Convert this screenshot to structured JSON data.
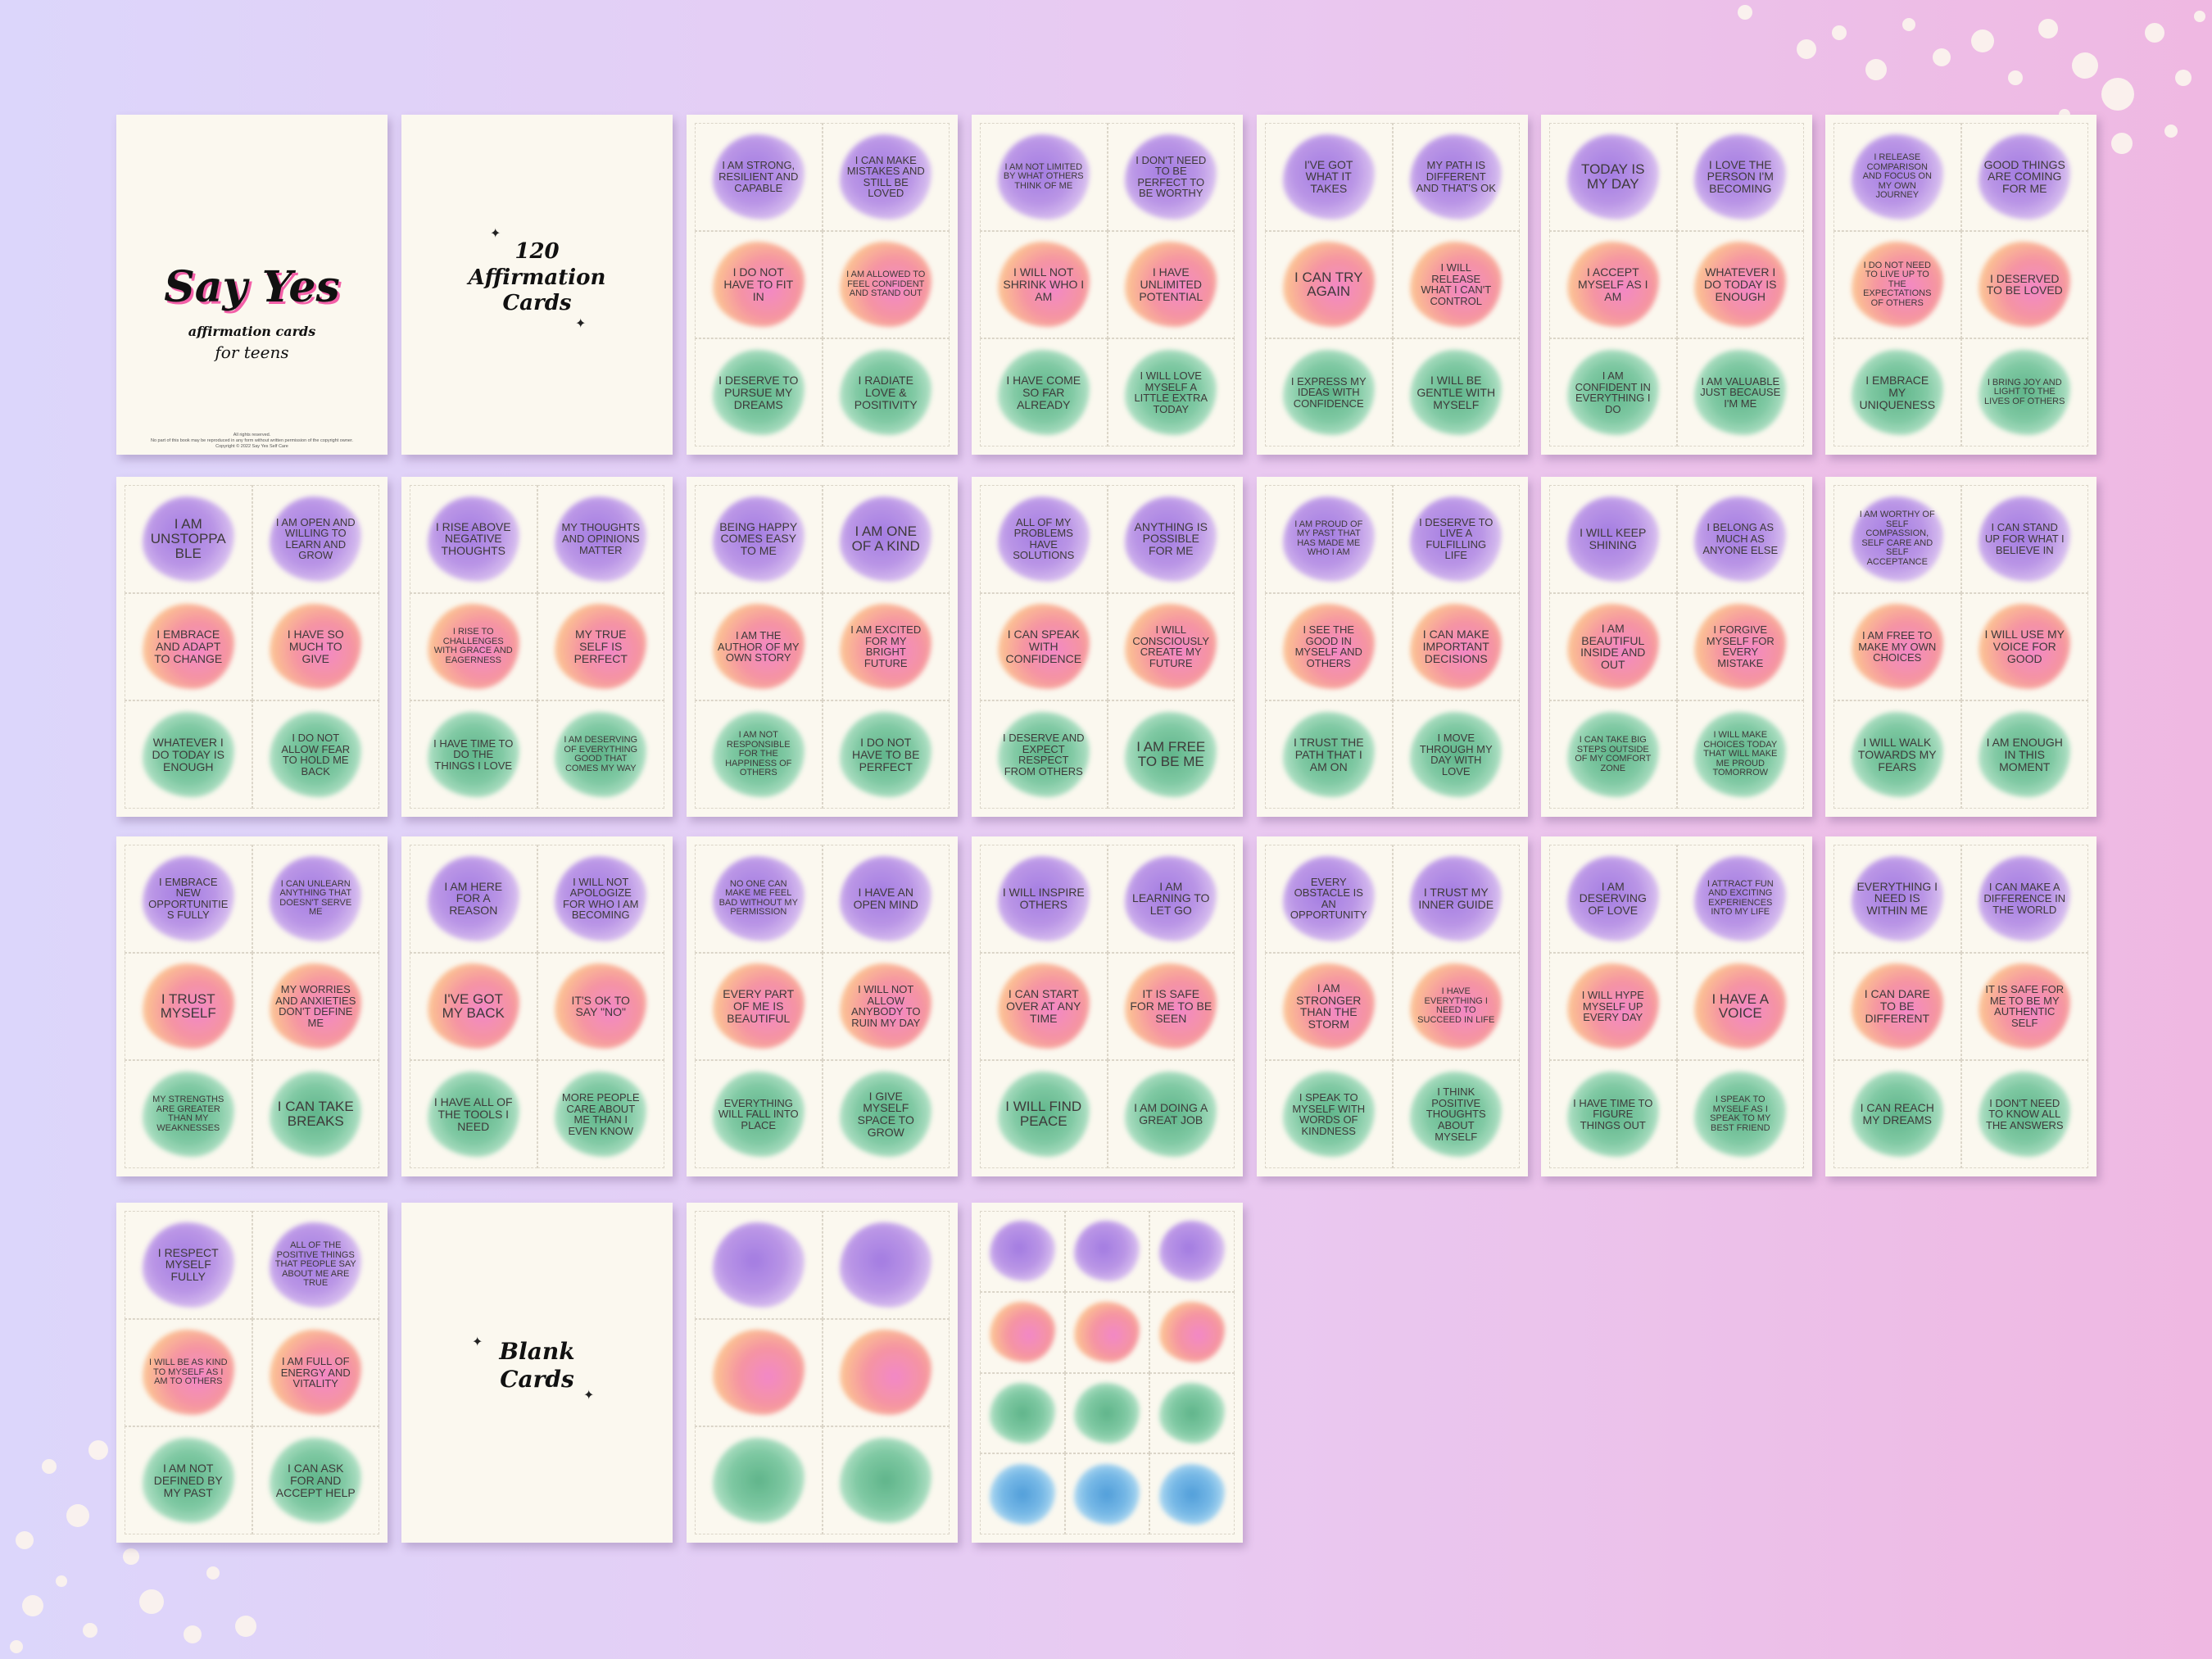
{
  "cover": {
    "title": "Say Yes",
    "subtitle": "affirmation cards",
    "tagline": "for teens",
    "legal_line1": "All rights reserved.",
    "legal_line2": "No part of this book may be reproduced in any form without written permission of the copyright owner.",
    "legal_line3": "Copyright © 2022 Say Yes Self Care"
  },
  "intro_page": {
    "line1": "120",
    "line2": "Affirmation",
    "line3": "Cards"
  },
  "blank_page": {
    "line1": "Blank",
    "line2": "Cards"
  },
  "sheets": [
    [
      "I AM STRONG, RESILIENT AND CAPABLE",
      "I CAN MAKE MISTAKES AND STILL BE LOVED",
      "I DO NOT HAVE TO FIT IN",
      "I AM ALLOWED TO FEEL CONFIDENT AND STAND OUT",
      "I DESERVE TO PURSUE MY DREAMS",
      "I RADIATE LOVE & POSITIVITY"
    ],
    [
      "I AM NOT LIMITED BY WHAT OTHERS THINK OF ME",
      "I DON'T NEED TO BE PERFECT TO BE WORTHY",
      "I WILL NOT SHRINK WHO I AM",
      "I HAVE UNLIMITED POTENTIAL",
      "I HAVE COME SO FAR ALREADY",
      "I WILL LOVE MYSELF A LITTLE EXTRA TODAY"
    ],
    [
      "I'VE GOT WHAT IT TAKES",
      "MY PATH IS DIFFERENT AND THAT'S OK",
      "I CAN TRY AGAIN",
      "I WILL RELEASE WHAT I CAN'T CONTROL",
      "I EXPRESS MY IDEAS WITH CONFIDENCE",
      "I WILL BE GENTLE WITH MYSELF"
    ],
    [
      "TODAY IS MY DAY",
      "I LOVE THE PERSON I'M BECOMING",
      "I ACCEPT MYSELF AS I AM",
      "WHATEVER I DO TODAY IS ENOUGH",
      "I AM CONFIDENT IN EVERYTHING I DO",
      "I AM VALUABLE JUST BECAUSE I'M ME"
    ],
    [
      "I RELEASE COMPARISON AND FOCUS ON MY OWN JOURNEY",
      "GOOD THINGS ARE COMING FOR ME",
      "I DO NOT NEED TO LIVE UP TO THE EXPECTATIONS OF OTHERS",
      "I DESERVED TO BE LOVED",
      "I EMBRACE MY UNIQUENESS",
      "I BRING JOY AND LIGHT TO THE LIVES OF OTHERS"
    ],
    [
      "I AM UNSTOPPABLE",
      "I AM OPEN AND WILLING TO LEARN AND GROW",
      "I EMBRACE AND ADAPT TO CHANGE",
      "I HAVE SO MUCH TO GIVE",
      "WHATEVER I DO TODAY IS ENOUGH",
      "I DO NOT ALLOW FEAR TO HOLD ME BACK"
    ],
    [
      "I RISE ABOVE NEGATIVE THOUGHTS",
      "MY THOUGHTS AND OPINIONS MATTER",
      "I RISE TO CHALLENGES WITH GRACE AND EAGERNESS",
      "MY TRUE SELF IS PERFECT",
      "I HAVE TIME TO DO THE THINGS I LOVE",
      "I AM DESERVING OF EVERYTHING GOOD THAT COMES MY WAY"
    ],
    [
      "BEING HAPPY COMES EASY TO ME",
      "I AM ONE OF A KIND",
      "I AM THE AUTHOR OF MY OWN STORY",
      "I AM EXCITED FOR MY BRIGHT FUTURE",
      "I AM NOT RESPONSIBLE FOR THE HAPPINESS OF OTHERS",
      "I DO NOT HAVE TO BE PERFECT"
    ],
    [
      "ALL OF MY PROBLEMS HAVE SOLUTIONS",
      "ANYTHING IS POSSIBLE FOR ME",
      "I CAN SPEAK WITH CONFIDENCE",
      "I WILL CONSCIOUSLY CREATE MY FUTURE",
      "I DESERVE AND EXPECT RESPECT FROM OTHERS",
      "I AM FREE TO BE ME"
    ],
    [
      "I AM PROUD OF MY PAST THAT HAS MADE ME WHO I AM",
      "I DESERVE TO LIVE A FULFILLING LIFE",
      "I SEE THE GOOD IN MYSELF AND OTHERS",
      "I CAN MAKE IMPORTANT DECISIONS",
      "I TRUST THE PATH THAT I AM ON",
      "I MOVE THROUGH MY DAY WITH LOVE"
    ],
    [
      "I WILL KEEP SHINING",
      "I BELONG AS MUCH AS ANYONE ELSE",
      "I AM BEAUTIFUL INSIDE AND OUT",
      "I FORGIVE MYSELF FOR EVERY MISTAKE",
      "I CAN TAKE BIG STEPS OUTSIDE OF MY COMFORT ZONE",
      "I WILL MAKE CHOICES TODAY THAT WILL MAKE ME PROUD TOMORROW"
    ],
    [
      "I AM WORTHY OF SELF COMPASSION, SELF CARE AND SELF ACCEPTANCE",
      "I CAN STAND UP FOR WHAT I BELIEVE IN",
      "I AM FREE TO MAKE MY OWN CHOICES",
      "I WILL USE MY VOICE FOR GOOD",
      "I WILL WALK TOWARDS MY FEARS",
      "I AM ENOUGH IN THIS MOMENT"
    ],
    [
      "I EMBRACE NEW OPPORTUNITIES FULLY",
      "I CAN UNLEARN ANYTHING THAT DOESN'T SERVE ME",
      "I TRUST MYSELF",
      "MY WORRIES AND ANXIETIES DON'T DEFINE ME",
      "MY STRENGTHS ARE GREATER THAN MY WEAKNESSES",
      "I CAN TAKE BREAKS"
    ],
    [
      "I AM HERE FOR A REASON",
      "I WILL NOT APOLOGIZE FOR WHO I AM BECOMING",
      "I'VE GOT MY BACK",
      "IT'S OK TO SAY \"NO\"",
      "I HAVE ALL OF THE TOOLS I NEED",
      "MORE PEOPLE CARE ABOUT ME THAN I EVEN KNOW"
    ],
    [
      "NO ONE CAN MAKE ME FEEL BAD WITHOUT MY PERMISSION",
      "I HAVE AN OPEN MIND",
      "EVERY PART OF ME IS BEAUTIFUL",
      "I WILL NOT ALLOW ANYBODY TO RUIN MY DAY",
      "EVERYTHING WILL FALL INTO PLACE",
      "I GIVE MYSELF SPACE TO GROW"
    ],
    [
      "I WILL INSPIRE OTHERS",
      "I AM LEARNING TO LET GO",
      "I CAN START OVER AT ANY TIME",
      "IT IS SAFE FOR ME TO BE SEEN",
      "I WILL FIND PEACE",
      "I AM DOING A GREAT JOB"
    ],
    [
      "EVERY OBSTACLE IS AN OPPORTUNITY",
      "I TRUST MY INNER GUIDE",
      "I AM STRONGER THAN THE STORM",
      "I HAVE EVERYTHING I NEED TO SUCCEED IN LIFE",
      "I SPEAK TO MYSELF WITH WORDS OF KINDNESS",
      "I THINK POSITIVE THOUGHTS ABOUT MYSELF"
    ],
    [
      "I AM DESERVING OF LOVE",
      "I ATTRACT FUN AND EXCITING EXPERIENCES INTO MY LIFE",
      "I WILL HYPE MYSELF UP EVERY DAY",
      "I HAVE A VOICE",
      "I HAVE TIME TO FIGURE THINGS OUT",
      "I SPEAK TO MYSELF AS I SPEAK TO MY BEST FRIEND"
    ],
    [
      "EVERYTHING I NEED IS WITHIN ME",
      "I CAN MAKE A DIFFERENCE IN THE WORLD",
      "I CAN DARE TO BE DIFFERENT",
      "IT IS SAFE FOR ME TO BE MY AUTHENTIC SELF",
      "I CAN REACH MY DREAMS",
      "I DON'T NEED TO KNOW ALL THE ANSWERS"
    ],
    [
      "I RESPECT MYSELF FULLY",
      "ALL OF THE POSITIVE THINGS THAT PEOPLE SAY ABOUT ME ARE TRUE",
      "I WILL BE AS KIND TO MYSELF AS I AM TO OTHERS",
      "I AM FULL OF ENERGY AND VITALITY",
      "I AM NOT DEFINED BY MY PAST",
      "I CAN ASK FOR AND ACCEPT HELP"
    ]
  ]
}
